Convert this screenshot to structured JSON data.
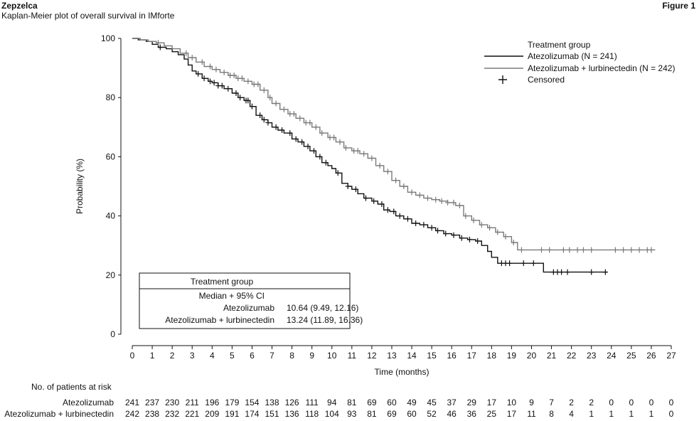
{
  "header": {
    "brand": "Zepzelca",
    "subtitle": "Kaplan-Meier plot of overall survival in IMforte",
    "figure_label": "Figure 1"
  },
  "colors": {
    "atezolizumab": "#111111",
    "combo": "#7a7a7a",
    "axis": "#111111"
  },
  "chart_data": {
    "type": "line",
    "xlabel": "Time (months)",
    "ylabel": "Probability (%)",
    "xlim": [
      0,
      27
    ],
    "ylim": [
      0,
      100
    ],
    "x_ticks": [
      0,
      1,
      2,
      3,
      4,
      5,
      6,
      7,
      8,
      9,
      10,
      11,
      12,
      13,
      14,
      15,
      16,
      17,
      18,
      19,
      20,
      21,
      22,
      23,
      24,
      25,
      26,
      27
    ],
    "y_ticks": [
      0,
      20,
      40,
      60,
      80,
      100
    ],
    "grid": false,
    "legend": {
      "placement": "top-right",
      "title": "Treatment group",
      "entries": [
        "Atezolizumab (N = 241)",
        "Atezolizumab + lurbinectedin (N = 242)",
        "Censored"
      ]
    },
    "summary_box": {
      "title": "Treatment group",
      "header": "Median + 95% CI",
      "rows": [
        {
          "group": "Atezolizumab",
          "value": "10.64 (9.49, 12.16)"
        },
        {
          "group": "Atezolizumab + lurbinectedin",
          "value": "13.24 (11.89, 16.36)"
        }
      ]
    },
    "series": [
      {
        "name": "Atezolizumab",
        "x": [
          0,
          0.3,
          0.7,
          1.0,
          1.3,
          1.7,
          2.0,
          2.3,
          2.6,
          2.8,
          3.0,
          3.2,
          3.5,
          3.8,
          4.0,
          4.3,
          4.6,
          5.0,
          5.3,
          5.6,
          5.9,
          6.2,
          6.5,
          6.8,
          7.0,
          7.3,
          7.6,
          8.0,
          8.3,
          8.6,
          8.9,
          9.2,
          9.5,
          9.8,
          10.0,
          10.2,
          10.5,
          10.8,
          11.0,
          11.3,
          11.6,
          12.0,
          12.3,
          12.6,
          12.9,
          13.2,
          13.6,
          14.0,
          14.4,
          14.8,
          15.2,
          15.6,
          16.0,
          16.4,
          16.8,
          17.2,
          17.5,
          17.8,
          18.0,
          18.3,
          18.6,
          19.0,
          19.5,
          20.0,
          20.6,
          21.0,
          21.5,
          22.0,
          22.5,
          23.0,
          23.5,
          23.8
        ],
        "y": [
          100,
          99.5,
          99,
          98,
          97,
          96.5,
          95.5,
          94.5,
          93,
          91,
          89,
          88,
          86.5,
          85.5,
          85,
          84,
          83,
          81.5,
          80,
          79,
          77,
          74,
          72.5,
          71.5,
          70,
          69,
          68,
          66,
          65,
          63.5,
          62,
          60,
          58,
          57,
          56,
          54.5,
          51,
          50,
          49,
          47.5,
          46,
          45,
          44,
          42,
          41.5,
          40,
          39,
          37.5,
          37,
          36,
          35,
          34,
          33.5,
          32.5,
          32,
          31.5,
          30,
          28,
          26,
          24,
          24,
          24,
          24,
          24,
          21,
          21,
          21,
          21,
          21,
          21,
          21,
          21
        ],
        "censored": [
          1.4,
          3.3,
          3.6,
          3.9,
          4.1,
          4.3,
          4.5,
          4.8,
          5.2,
          5.4,
          5.7,
          5.8,
          6.0,
          6.4,
          6.6,
          6.8,
          7.2,
          7.5,
          7.9,
          8.2,
          8.5,
          8.8,
          9.1,
          9.4,
          9.7,
          10.3,
          10.8,
          11.2,
          11.7,
          12.1,
          12.5,
          12.8,
          13.1,
          13.4,
          13.8,
          14.2,
          14.6,
          15.0,
          15.3,
          15.7,
          16.1,
          16.5,
          16.9,
          17.3,
          18.5,
          18.7,
          18.9,
          19.6,
          20.1,
          21.1,
          21.3,
          21.5,
          21.8,
          23.0,
          23.7
        ],
        "at_risk": [
          241,
          237,
          230,
          211,
          196,
          179,
          154,
          138,
          126,
          111,
          94,
          81,
          69,
          60,
          49,
          45,
          37,
          29,
          17,
          10,
          9,
          7,
          2,
          2,
          0,
          0,
          0,
          0
        ]
      },
      {
        "name": "Atezolizumab + lurbinectedin",
        "x": [
          0,
          0.4,
          0.8,
          1.2,
          1.6,
          2.0,
          2.4,
          2.8,
          3.2,
          3.6,
          4.0,
          4.4,
          4.8,
          5.2,
          5.6,
          6.0,
          6.4,
          6.8,
          7.0,
          7.4,
          7.8,
          8.2,
          8.6,
          9.0,
          9.4,
          9.8,
          10.2,
          10.6,
          11.0,
          11.4,
          11.8,
          12.2,
          12.6,
          13.0,
          13.4,
          13.8,
          14.2,
          14.6,
          15.0,
          15.4,
          15.8,
          16.2,
          16.6,
          17.0,
          17.4,
          17.8,
          18.2,
          18.6,
          19.0,
          19.3,
          20.0,
          21.0,
          22.0,
          23.0,
          24.0,
          25.0,
          26.2
        ],
        "y": [
          100,
          99.5,
          99,
          98.5,
          97.5,
          96.5,
          95,
          93.5,
          92,
          90.5,
          89.5,
          88.5,
          87.5,
          86.5,
          85.5,
          84.5,
          82.5,
          80,
          78,
          76,
          74.5,
          73,
          71.5,
          70,
          68,
          66.5,
          65,
          63,
          62,
          61,
          59.5,
          57,
          55,
          52,
          50,
          48,
          47,
          46,
          45.5,
          45,
          44.5,
          43.5,
          40,
          38.5,
          37,
          36,
          34.5,
          33,
          31,
          28.5,
          28.5,
          28.5,
          28.5,
          28.5,
          28.5,
          28.5,
          28.5
        ],
        "censored": [
          1.3,
          2.7,
          3.0,
          3.5,
          3.9,
          4.2,
          4.6,
          4.9,
          5.1,
          5.3,
          5.5,
          5.8,
          6.1,
          6.3,
          6.6,
          6.9,
          7.2,
          7.6,
          7.9,
          8.1,
          8.4,
          8.7,
          8.9,
          9.2,
          9.5,
          9.9,
          10.1,
          10.4,
          10.7,
          11.1,
          11.3,
          11.6,
          12.0,
          12.4,
          12.8,
          13.2,
          13.6,
          14.0,
          14.4,
          14.8,
          15.2,
          15.5,
          15.8,
          16.1,
          16.4,
          16.7,
          17.1,
          17.5,
          17.9,
          18.3,
          18.7,
          19.1,
          19.5,
          20.5,
          20.9,
          21.6,
          21.9,
          22.3,
          22.6,
          23.0,
          24.2,
          24.6,
          25.0,
          25.4,
          25.8,
          26.0
        ],
        "at_risk": [
          242,
          238,
          232,
          221,
          209,
          191,
          174,
          151,
          136,
          118,
          104,
          93,
          81,
          69,
          60,
          52,
          46,
          36,
          25,
          17,
          11,
          8,
          4,
          1,
          1,
          1,
          1,
          0
        ]
      }
    ],
    "at_risk_table": {
      "title": "No. of patients at risk",
      "rows": [
        "Atezolizumab",
        "Atezolizumab + lurbinectedin"
      ]
    }
  }
}
